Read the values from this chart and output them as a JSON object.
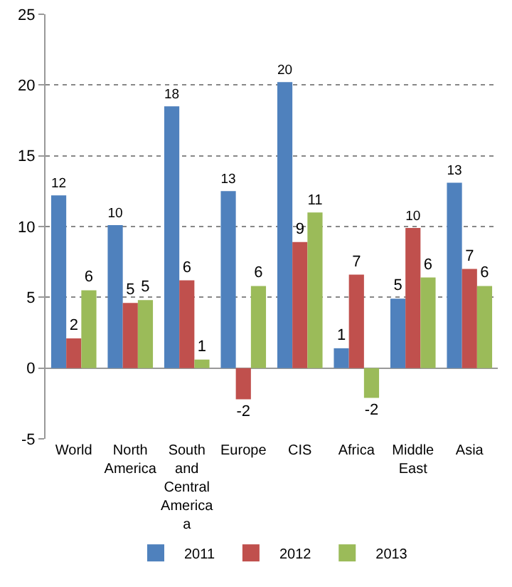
{
  "chart_data": {
    "type": "bar",
    "categories": [
      "World",
      "North America",
      "South and Central America a",
      "Europe",
      "CIS",
      "Africa",
      "Middle East",
      "Asia"
    ],
    "series": [
      {
        "name": "2011",
        "color": "#4f81bd",
        "values": [
          12.2,
          10.1,
          18.5,
          12.5,
          20.2,
          1.4,
          4.9,
          13.1
        ],
        "value_labels": [
          "12",
          "10",
          "18",
          "13",
          "20",
          "1",
          "5",
          "13"
        ]
      },
      {
        "name": "2012",
        "color": "#c0504d",
        "values": [
          2.1,
          4.6,
          6.2,
          -2.2,
          8.9,
          6.6,
          9.9,
          7.0
        ],
        "value_labels": [
          "2",
          "5",
          "6",
          "-2",
          "9",
          "7",
          "10",
          "7"
        ]
      },
      {
        "name": "2013",
        "color": "#9bbb59",
        "values": [
          5.5,
          4.8,
          0.6,
          5.8,
          11.0,
          -2.1,
          6.4,
          5.8
        ],
        "value_labels": [
          "6",
          "5",
          "1",
          "6",
          "11",
          "-2",
          "6",
          "6"
        ]
      }
    ],
    "ylim": [
      -5,
      25
    ],
    "yticks": [
      -5,
      0,
      5,
      10,
      15,
      20,
      25
    ],
    "grid": "y",
    "legend": "bottom"
  }
}
